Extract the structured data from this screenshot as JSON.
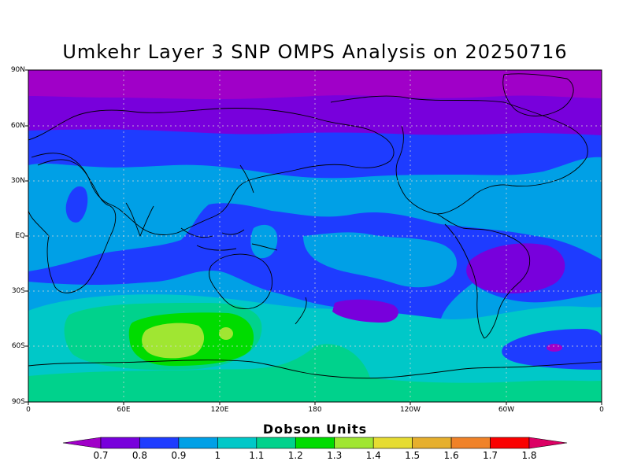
{
  "title": "Umkehr Layer 3 SNP OMPS Analysis on 20250716",
  "lat_labels": [
    "90N",
    "60N",
    "30N",
    "EQ",
    "30S",
    "60S",
    "90S"
  ],
  "lon_labels": [
    "0",
    "60E",
    "120E",
    "180",
    "120W",
    "60W",
    "0"
  ],
  "colorbar": {
    "title": "Dobson Units",
    "ticks": [
      "0.7",
      "0.8",
      "0.9",
      "1",
      "1.1",
      "1.2",
      "1.3",
      "1.4",
      "1.5",
      "1.6",
      "1.7",
      "1.8"
    ],
    "colors": [
      "#a000c8",
      "#7800dc",
      "#1e3cff",
      "#00a0e6",
      "#00c8c8",
      "#00d28c",
      "#00dc00",
      "#a0e632",
      "#e6dc32",
      "#e6af2d",
      "#f08228",
      "#fa0000",
      "#dc0064"
    ]
  }
}
